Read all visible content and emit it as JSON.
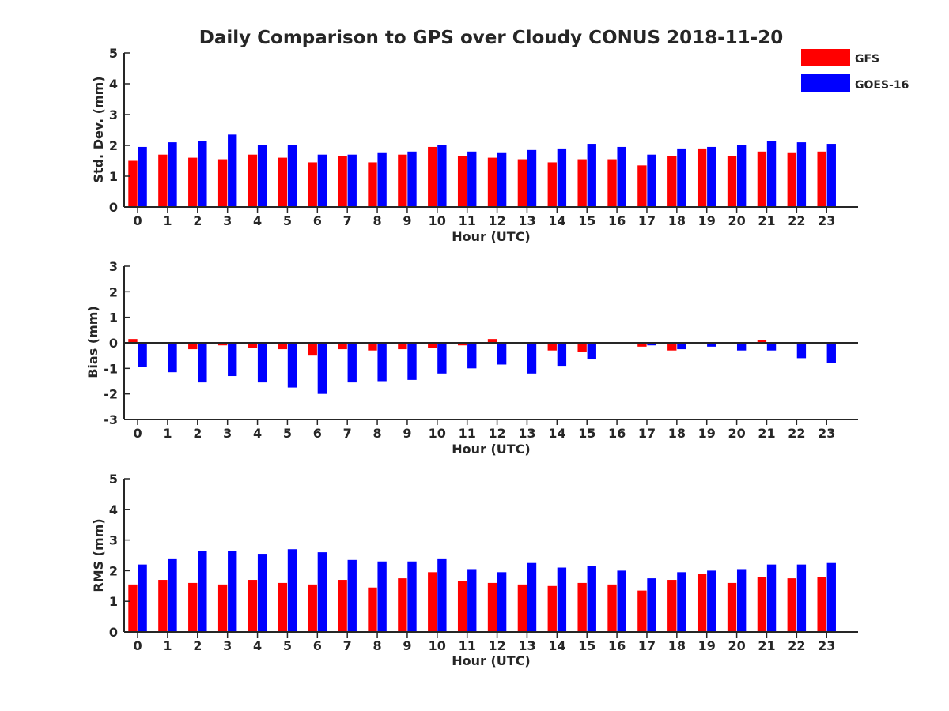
{
  "title": "Daily Comparison to GPS over Cloudy CONUS 2018-11-20",
  "legend": [
    {
      "name": "GFS",
      "color": "#ff0000"
    },
    {
      "name": "GOES-16",
      "color": "#0000ff"
    }
  ],
  "chart_data": [
    {
      "type": "bar",
      "xlabel": "Hour (UTC)",
      "ylabel": "Std. Dev. (mm)",
      "ylim": [
        0,
        5
      ],
      "yticks": [
        0,
        1,
        2,
        3,
        4,
        5
      ],
      "categories": [
        "0",
        "1",
        "2",
        "3",
        "4",
        "5",
        "6",
        "7",
        "8",
        "9",
        "10",
        "11",
        "12",
        "13",
        "14",
        "15",
        "16",
        "17",
        "18",
        "19",
        "20",
        "21",
        "22",
        "23"
      ],
      "series": [
        {
          "name": "GFS",
          "color": "#ff0000",
          "values": [
            1.5,
            1.7,
            1.6,
            1.55,
            1.7,
            1.6,
            1.45,
            1.65,
            1.45,
            1.7,
            1.95,
            1.65,
            1.6,
            1.55,
            1.45,
            1.55,
            1.55,
            1.35,
            1.65,
            1.9,
            1.65,
            1.8,
            1.75,
            1.8
          ]
        },
        {
          "name": "GOES-16",
          "color": "#0000ff",
          "values": [
            1.95,
            2.1,
            2.15,
            2.35,
            2.0,
            2.0,
            1.7,
            1.7,
            1.75,
            1.8,
            2.0,
            1.8,
            1.75,
            1.85,
            1.9,
            2.05,
            1.95,
            1.7,
            1.9,
            1.95,
            2.0,
            2.15,
            2.1,
            2.05
          ]
        }
      ]
    },
    {
      "type": "bar",
      "xlabel": "Hour (UTC)",
      "ylabel": "Bias (mm)",
      "ylim": [
        -3,
        3
      ],
      "yticks": [
        -3,
        -2,
        -1,
        0,
        1,
        2,
        3
      ],
      "zero_line": true,
      "categories": [
        "0",
        "1",
        "2",
        "3",
        "4",
        "5",
        "6",
        "7",
        "8",
        "9",
        "10",
        "11",
        "12",
        "13",
        "14",
        "15",
        "16",
        "17",
        "18",
        "19",
        "20",
        "21",
        "22",
        "23"
      ],
      "series": [
        {
          "name": "GFS",
          "color": "#ff0000",
          "values": [
            0.15,
            0.0,
            -0.25,
            -0.1,
            -0.2,
            -0.25,
            -0.5,
            -0.25,
            -0.3,
            -0.25,
            -0.2,
            -0.1,
            0.15,
            0.02,
            -0.3,
            -0.35,
            0.02,
            -0.15,
            -0.3,
            -0.05,
            0.0,
            0.1,
            0.0,
            0.0
          ]
        },
        {
          "name": "GOES-16",
          "color": "#0000ff",
          "values": [
            -0.95,
            -1.15,
            -1.55,
            -1.3,
            -1.55,
            -1.75,
            -2.0,
            -1.55,
            -1.5,
            -1.45,
            -1.2,
            -1.0,
            -0.85,
            -1.2,
            -0.9,
            -0.65,
            -0.05,
            -0.1,
            -0.25,
            -0.15,
            -0.3,
            -0.3,
            -0.6,
            -0.8
          ]
        }
      ]
    },
    {
      "type": "bar",
      "xlabel": "Hour (UTC)",
      "ylabel": "RMS (mm)",
      "ylim": [
        0,
        5
      ],
      "yticks": [
        0,
        1,
        2,
        3,
        4,
        5
      ],
      "categories": [
        "0",
        "1",
        "2",
        "3",
        "4",
        "5",
        "6",
        "7",
        "8",
        "9",
        "10",
        "11",
        "12",
        "13",
        "14",
        "15",
        "16",
        "17",
        "18",
        "19",
        "20",
        "21",
        "22",
        "23"
      ],
      "series": [
        {
          "name": "GFS",
          "color": "#ff0000",
          "values": [
            1.55,
            1.7,
            1.6,
            1.55,
            1.7,
            1.6,
            1.55,
            1.7,
            1.45,
            1.75,
            1.95,
            1.65,
            1.6,
            1.55,
            1.5,
            1.6,
            1.55,
            1.35,
            1.7,
            1.9,
            1.6,
            1.8,
            1.75,
            1.8
          ]
        },
        {
          "name": "GOES-16",
          "color": "#0000ff",
          "values": [
            2.2,
            2.4,
            2.65,
            2.65,
            2.55,
            2.7,
            2.6,
            2.35,
            2.3,
            2.3,
            2.4,
            2.05,
            1.95,
            2.25,
            2.1,
            2.15,
            2.0,
            1.75,
            1.95,
            2.0,
            2.05,
            2.2,
            2.2,
            2.25
          ]
        }
      ]
    }
  ]
}
